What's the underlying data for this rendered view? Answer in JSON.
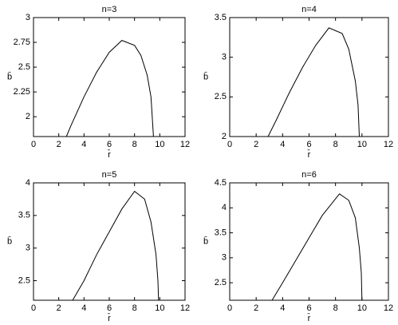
{
  "chart_data": [
    {
      "type": "line",
      "title": "n=3",
      "xlabel": "r̄",
      "ylabel": "b̄",
      "x": [
        2.6,
        3,
        4,
        5,
        6,
        7,
        8,
        8.5,
        9,
        9.3,
        9.5
      ],
      "values": [
        1.8,
        1.92,
        2.2,
        2.45,
        2.65,
        2.77,
        2.72,
        2.62,
        2.42,
        2.2,
        1.8
      ],
      "color": "#000000",
      "xlim": [
        0,
        12
      ],
      "xticks": [
        0,
        2,
        4,
        6,
        8,
        10,
        12
      ],
      "ylim": [
        1.8,
        3
      ],
      "yticks": [
        2,
        2.25,
        2.5,
        2.75,
        3
      ]
    },
    {
      "type": "line",
      "title": "n=4",
      "xlabel": "r̄",
      "ylabel": "b̄",
      "x": [
        2.9,
        3.5,
        4.5,
        5.5,
        6.5,
        7.5,
        8.5,
        9,
        9.5,
        9.7,
        9.8
      ],
      "values": [
        2.0,
        2.2,
        2.55,
        2.87,
        3.15,
        3.37,
        3.3,
        3.1,
        2.7,
        2.4,
        2.0
      ],
      "color": "#000000",
      "xlim": [
        0,
        12
      ],
      "xticks": [
        0,
        2,
        4,
        6,
        8,
        10,
        12
      ],
      "ylim": [
        2,
        3.5
      ],
      "yticks": [
        2,
        2.5,
        3,
        3.5
      ]
    },
    {
      "type": "line",
      "title": "n=5",
      "xlabel": "r̄",
      "ylabel": "b̄",
      "x": [
        3.1,
        4,
        5,
        6,
        7,
        8,
        8.8,
        9.3,
        9.7,
        9.85,
        9.9
      ],
      "values": [
        2.2,
        2.5,
        2.9,
        3.25,
        3.6,
        3.87,
        3.75,
        3.4,
        2.9,
        2.5,
        2.2
      ],
      "color": "#000000",
      "xlim": [
        0,
        12
      ],
      "xticks": [
        0,
        2,
        4,
        6,
        8,
        10,
        12
      ],
      "ylim": [
        2.2,
        4
      ],
      "yticks": [
        2.5,
        3,
        3.5,
        4
      ]
    },
    {
      "type": "line",
      "title": "n=6",
      "xlabel": "r̄",
      "ylabel": "b̄",
      "x": [
        3.2,
        4,
        5,
        6,
        7,
        8.3,
        9,
        9.5,
        9.8,
        9.95,
        10
      ],
      "values": [
        2.15,
        2.5,
        2.95,
        3.4,
        3.85,
        4.28,
        4.15,
        3.8,
        3.2,
        2.7,
        2.15
      ],
      "color": "#000000",
      "xlim": [
        0,
        12
      ],
      "xticks": [
        0,
        2,
        4,
        6,
        8,
        10,
        12
      ],
      "ylim": [
        2.15,
        4.5
      ],
      "yticks": [
        2.5,
        3,
        3.5,
        4,
        4.5
      ]
    }
  ]
}
